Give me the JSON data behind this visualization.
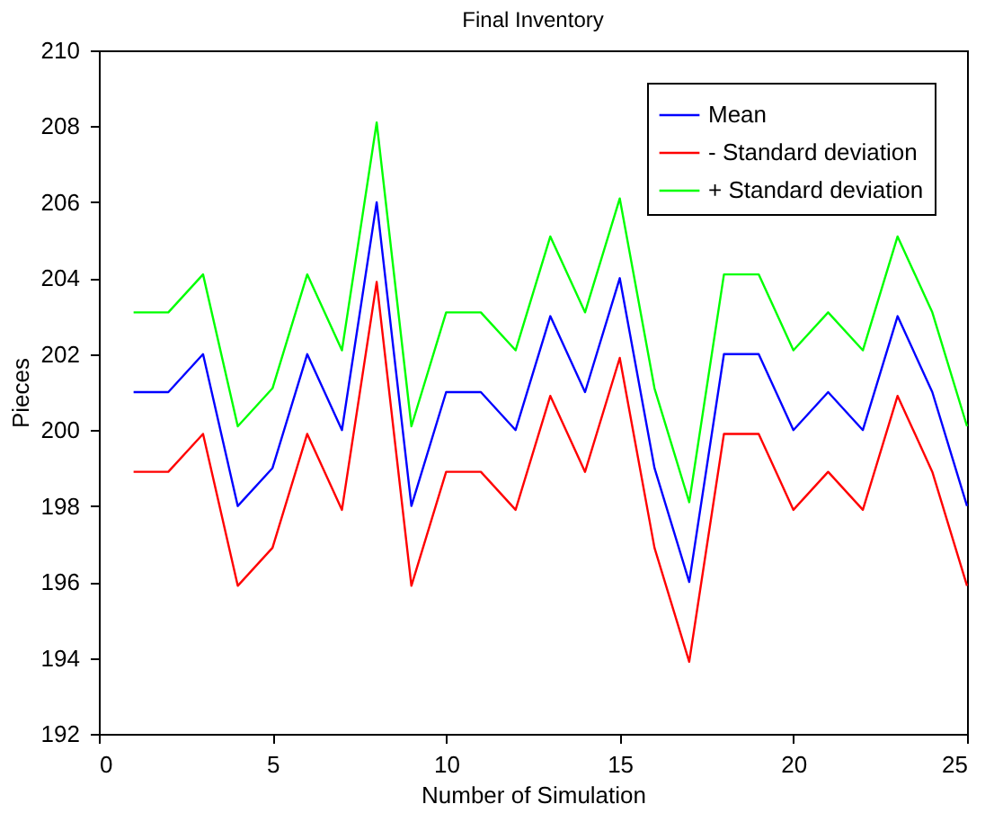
{
  "chart_data": {
    "type": "line",
    "title": "Final Inventory",
    "xlabel": "Number of Simulation",
    "ylabel": "Pieces",
    "x": [
      1,
      2,
      3,
      4,
      5,
      6,
      7,
      8,
      9,
      10,
      11,
      12,
      13,
      14,
      15,
      16,
      17,
      18,
      19,
      20,
      21,
      22,
      23,
      24,
      25
    ],
    "series": [
      {
        "name": "Mean",
        "color": "#0000ff",
        "values": [
          201,
          201,
          202,
          198,
          199,
          202,
          200,
          206,
          198,
          201,
          201,
          200,
          203,
          201,
          204,
          199,
          196,
          202,
          202,
          200,
          201,
          200,
          203,
          201,
          198
        ]
      },
      {
        "name": "- Standard deviation",
        "color": "#ff0000",
        "values": [
          198.9,
          198.9,
          199.9,
          195.9,
          196.9,
          199.9,
          197.9,
          203.9,
          195.9,
          198.9,
          198.9,
          197.9,
          200.9,
          198.9,
          201.9,
          196.9,
          193.9,
          199.9,
          199.9,
          197.9,
          198.9,
          197.9,
          200.9,
          198.9,
          195.9
        ]
      },
      {
        "name": "+ Standard deviation",
        "color": "#00ff00",
        "values": [
          203.1,
          203.1,
          204.1,
          200.1,
          201.1,
          204.1,
          202.1,
          208.1,
          200.1,
          203.1,
          203.1,
          202.1,
          205.1,
          203.1,
          206.1,
          201.1,
          198.1,
          204.1,
          204.1,
          202.1,
          203.1,
          202.1,
          205.1,
          203.1,
          200.1
        ]
      }
    ],
    "xlim": [
      0,
      25
    ],
    "xticks": [
      0,
      5,
      10,
      15,
      20,
      25
    ],
    "ylim": [
      192,
      210
    ],
    "yticks": [
      192,
      194,
      196,
      198,
      200,
      202,
      204,
      206,
      208,
      210
    ],
    "grid": false,
    "legend": "top right",
    "line_style": "solid",
    "marker": "none"
  }
}
